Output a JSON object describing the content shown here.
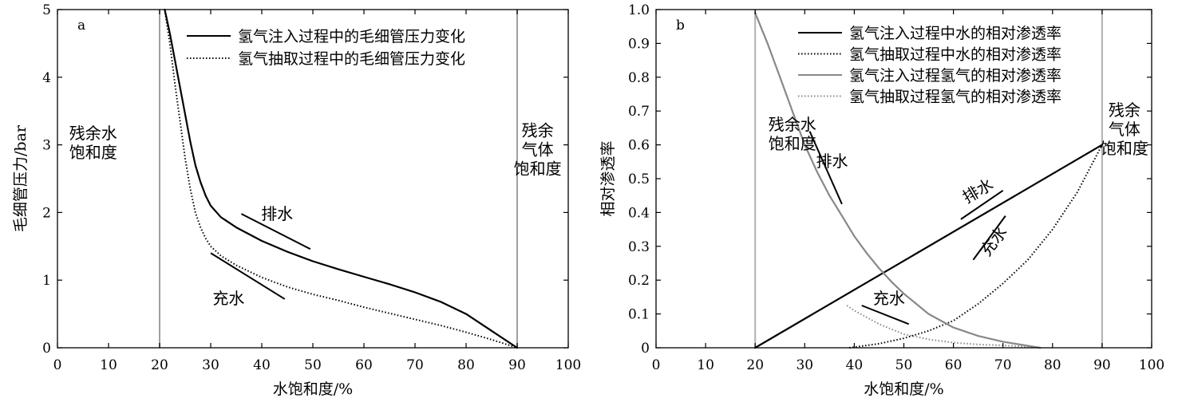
{
  "chart_data": [
    {
      "type": "line",
      "panel_label": "a",
      "xlabel": "水饱和度/%",
      "ylabel": "毛细管压力/bar",
      "xlim": [
        0,
        100
      ],
      "ylim": [
        0,
        5
      ],
      "xticks": [
        "0",
        "10",
        "20",
        "30",
        "40",
        "50",
        "60",
        "70",
        "80",
        "90",
        "100"
      ],
      "yticks": [
        "0",
        "1",
        "2",
        "3",
        "4",
        "5"
      ],
      "legend_position": "top-right",
      "series": [
        {
          "name": "氢气注入过程中的毛细管压力变化",
          "style": "solid",
          "color": "#000000",
          "x": [
            21,
            22,
            23,
            24,
            25,
            26,
            27,
            28,
            29,
            30,
            32,
            35,
            40,
            45,
            50,
            55,
            60,
            65,
            70,
            75,
            80,
            85,
            90
          ],
          "y": [
            5.0,
            4.65,
            4.25,
            3.85,
            3.45,
            3.05,
            2.7,
            2.45,
            2.25,
            2.1,
            1.93,
            1.78,
            1.58,
            1.42,
            1.28,
            1.16,
            1.05,
            0.94,
            0.82,
            0.68,
            0.5,
            0.25,
            0.0
          ]
        },
        {
          "name": "氢气抽取过程中的毛细管压力变化",
          "style": "dotted",
          "color": "#000000",
          "x": [
            21,
            22,
            23,
            24,
            25,
            26,
            27,
            28,
            29,
            30,
            32,
            35,
            40,
            45,
            50,
            55,
            60,
            65,
            70,
            75,
            80,
            85,
            90
          ],
          "y": [
            5.0,
            4.5,
            3.9,
            3.35,
            2.8,
            2.35,
            2.0,
            1.78,
            1.62,
            1.5,
            1.36,
            1.22,
            1.04,
            0.9,
            0.79,
            0.7,
            0.6,
            0.51,
            0.42,
            0.33,
            0.23,
            0.12,
            0.0
          ]
        }
      ],
      "reference_lines": [
        {
          "axis": "x",
          "value": 20,
          "color": "#a0a0a0"
        },
        {
          "axis": "x",
          "value": 90,
          "color": "#a0a0a0"
        }
      ],
      "annotations": [
        {
          "text": "残余水\n饱和度",
          "x": 7,
          "y": 2.95
        },
        {
          "text": "残余\n气体\n饱和度",
          "x": 94,
          "y": 2.85
        },
        {
          "text": "排水",
          "x": 43,
          "y": 1.9
        },
        {
          "text": "充水",
          "x": 33.5,
          "y": 0.65
        }
      ],
      "annotation_lines": [
        {
          "x": [
            36,
            49.5
          ],
          "y": [
            1.98,
            1.46
          ]
        },
        {
          "x": [
            30,
            44.5
          ],
          "y": [
            1.4,
            0.72
          ]
        }
      ]
    },
    {
      "type": "line",
      "panel_label": "b",
      "xlabel": "水饱和度/%",
      "ylabel": "相对渗透率",
      "xlim": [
        0,
        100
      ],
      "ylim": [
        0,
        1.0
      ],
      "xticks": [
        "0",
        "10",
        "20",
        "30",
        "40",
        "50",
        "60",
        "70",
        "80",
        "90",
        "100"
      ],
      "yticks": [
        "0",
        "0.1",
        "0.2",
        "0.3",
        "0.4",
        "0.5",
        "0.6",
        "0.7",
        "0.8",
        "0.9",
        "1.0"
      ],
      "legend_position": "top-right",
      "series": [
        {
          "name": "氢气注入过程中水的相对渗透率",
          "style": "solid",
          "color": "#000000",
          "x": [
            20,
            90
          ],
          "y": [
            0.0,
            0.6
          ]
        },
        {
          "name": "氢气抽取过程中水的相对渗透率",
          "style": "dotted",
          "color": "#000000",
          "x": [
            39,
            45,
            50,
            55,
            60,
            65,
            70,
            75,
            80,
            85,
            90
          ],
          "y": [
            0.0,
            0.012,
            0.028,
            0.05,
            0.08,
            0.13,
            0.19,
            0.26,
            0.35,
            0.46,
            0.6
          ]
        },
        {
          "name": "氢气注入过程氢气的相对渗透率",
          "style": "solid",
          "color": "#888888",
          "x": [
            20,
            22.5,
            25,
            27.5,
            30,
            32.5,
            35,
            37.5,
            40,
            42.5,
            45,
            47.5,
            50,
            55,
            60,
            65,
            70,
            75,
            77.5
          ],
          "y": [
            0.99,
            0.9,
            0.8,
            0.7,
            0.6,
            0.52,
            0.45,
            0.39,
            0.33,
            0.28,
            0.235,
            0.195,
            0.16,
            0.1,
            0.06,
            0.035,
            0.018,
            0.006,
            0.0
          ]
        },
        {
          "name": "氢气抽取过程氢气的相对渗透率",
          "style": "dotted",
          "color": "#888888",
          "x": [
            38.5,
            40,
            42.5,
            45,
            47.5,
            50,
            55,
            60,
            65,
            70,
            75,
            77.5
          ],
          "y": [
            0.125,
            0.11,
            0.09,
            0.07,
            0.055,
            0.04,
            0.025,
            0.015,
            0.01,
            0.007,
            0.003,
            0.0
          ]
        }
      ],
      "reference_lines": [
        {
          "axis": "x",
          "value": 20,
          "color": "#b0b0b0"
        },
        {
          "axis": "x",
          "value": 90,
          "color": "#b0b0b0"
        }
      ],
      "annotations": [
        {
          "text": "残余水\n饱和度",
          "x": 27.5,
          "y": 0.615
        },
        {
          "text": "残余\n气体\n饱和度",
          "x": 94.5,
          "y": 0.63
        },
        {
          "text": "排水",
          "x": 35.5,
          "y": 0.535
        },
        {
          "text": "排水",
          "x": 65.5,
          "y": 0.45,
          "rotate": -30
        },
        {
          "text": "充水",
          "x": 69,
          "y": 0.305,
          "rotate": -52
        },
        {
          "text": "充水",
          "x": 47,
          "y": 0.13
        }
      ],
      "annotation_lines": [
        {
          "x": [
            31,
            37.5
          ],
          "y": [
            0.64,
            0.425
          ]
        },
        {
          "x": [
            61.5,
            70
          ],
          "y": [
            0.38,
            0.465
          ]
        },
        {
          "x": [
            64,
            70.5
          ],
          "y": [
            0.26,
            0.39
          ]
        },
        {
          "x": [
            41.5,
            51
          ],
          "y": [
            0.125,
            0.07
          ]
        }
      ]
    }
  ]
}
